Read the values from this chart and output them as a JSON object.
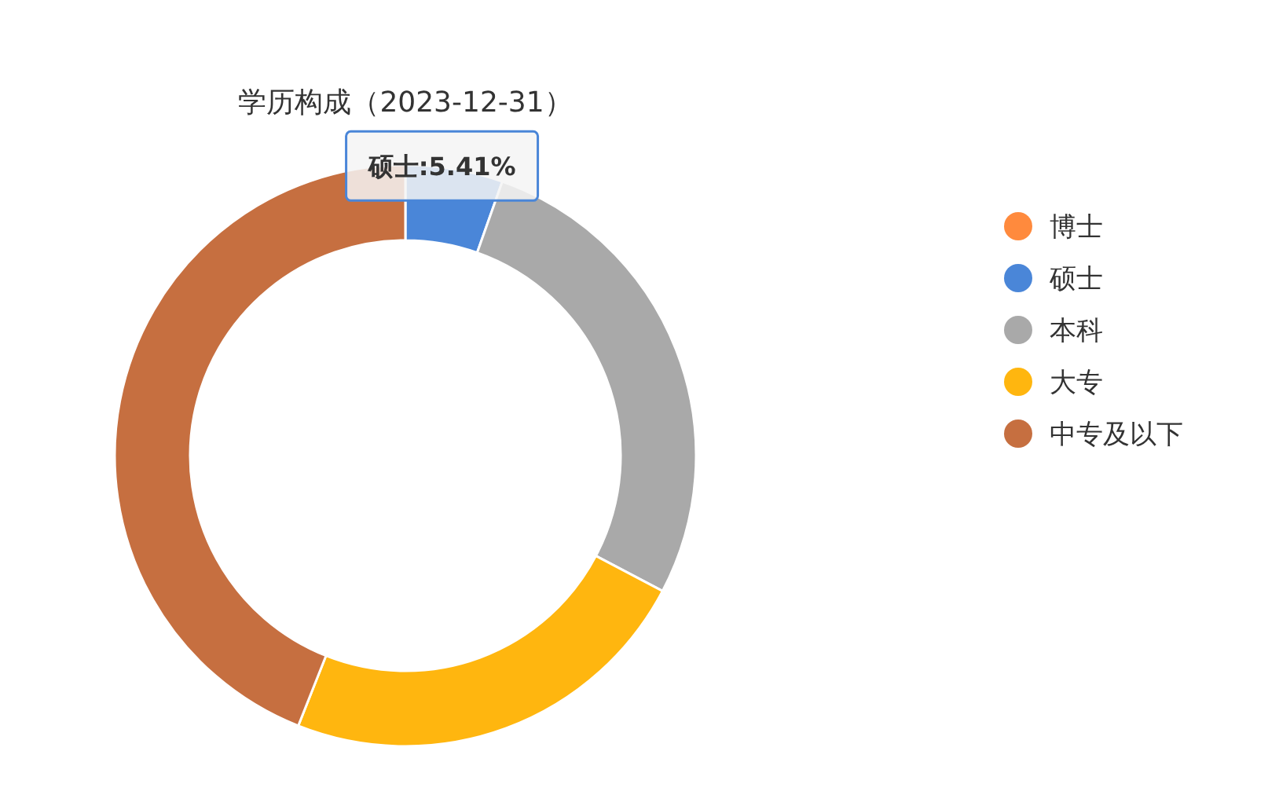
{
  "chart_data": {
    "type": "donut",
    "title": "学历构成（2023-12-31）",
    "categories": [
      "博士",
      "硕士",
      "本科",
      "大专",
      "中专及以下"
    ],
    "values": [
      0,
      5.41,
      27.3,
      23.3,
      43.99
    ],
    "colors": [
      "#ff8a3d",
      "#4a86d8",
      "#a9a9a9",
      "#ffb60f",
      "#c66f40"
    ],
    "value_labels": [
      null,
      "硕士:5.41%",
      null,
      null,
      null
    ],
    "legend": "right"
  }
}
